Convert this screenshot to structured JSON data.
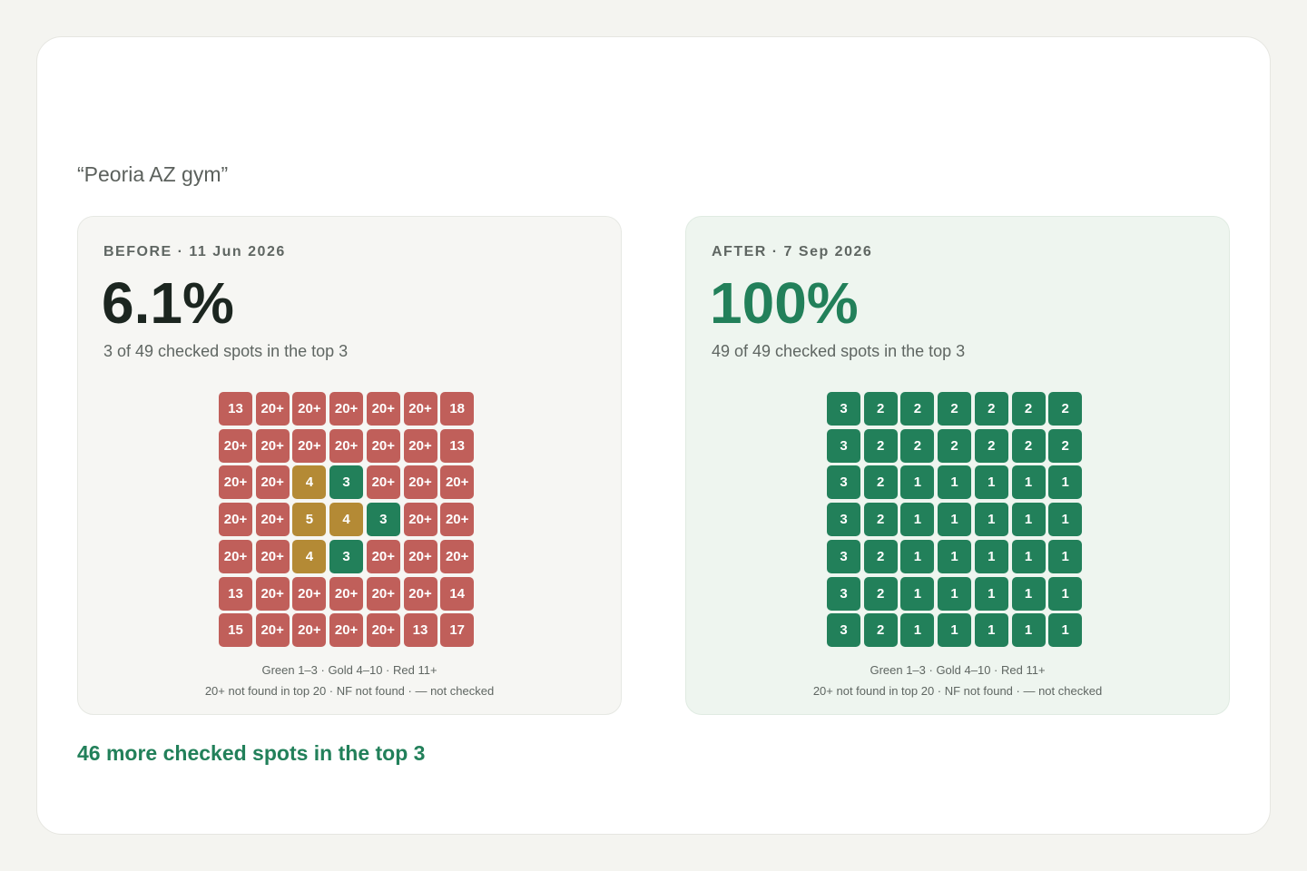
{
  "query": "“Peoria AZ gym”",
  "panels": [
    {
      "label": "BEFORE · 11 Jun 2026",
      "percent": "6.1%",
      "summary": "3 of 49 checked spots in the top 3",
      "tone": "before",
      "grid": [
        [
          13,
          "20+",
          "20+",
          "20+",
          "20+",
          "20+",
          18
        ],
        [
          "20+",
          "20+",
          "20+",
          "20+",
          "20+",
          "20+",
          13
        ],
        [
          "20+",
          "20+",
          4,
          3,
          "20+",
          "20+",
          "20+"
        ],
        [
          "20+",
          "20+",
          5,
          4,
          3,
          "20+",
          "20+"
        ],
        [
          "20+",
          "20+",
          4,
          3,
          "20+",
          "20+",
          "20+"
        ],
        [
          13,
          "20+",
          "20+",
          "20+",
          "20+",
          "20+",
          14
        ],
        [
          15,
          "20+",
          "20+",
          "20+",
          "20+",
          13,
          17
        ]
      ],
      "legend": [
        "Green 1–3 · Gold 4–10 · Red 11+",
        "20+ not found in top 20 · NF not found · — not checked"
      ]
    },
    {
      "label": "AFTER · 7 Sep 2026",
      "percent": "100%",
      "summary": "49 of 49 checked spots in the top 3",
      "tone": "after",
      "grid": [
        [
          3,
          2,
          2,
          2,
          2,
          2,
          2
        ],
        [
          3,
          2,
          2,
          2,
          2,
          2,
          2
        ],
        [
          3,
          2,
          1,
          1,
          1,
          1,
          1
        ],
        [
          3,
          2,
          1,
          1,
          1,
          1,
          1
        ],
        [
          3,
          2,
          1,
          1,
          1,
          1,
          1
        ],
        [
          3,
          2,
          1,
          1,
          1,
          1,
          1
        ],
        [
          3,
          2,
          1,
          1,
          1,
          1,
          1
        ]
      ],
      "legend": [
        "Green 1–3 · Gold 4–10 · Red 11+",
        "20+ not found in top 20 · NF not found · — not checked"
      ]
    }
  ],
  "color_scale": [
    {
      "max": 3,
      "color": "#22805a"
    },
    {
      "max": 10,
      "color": "#b48a35"
    },
    {
      "color": "#c05f5a"
    }
  ],
  "footer": "46 more checked spots in the top 3"
}
